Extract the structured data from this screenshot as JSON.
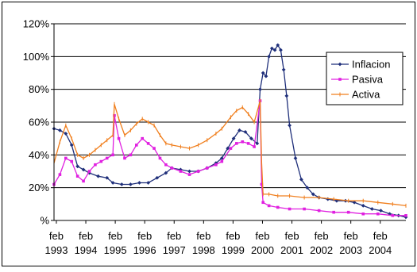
{
  "chart_data": {
    "type": "line",
    "title": "",
    "xlabel": "",
    "ylabel": "",
    "ylim": [
      0,
      120
    ],
    "yticks": [
      "%",
      "20%",
      "40%",
      "60%",
      "80%",
      "100%",
      "120%"
    ],
    "xlim": [
      1993.0,
      2004.95
    ],
    "xticks": [
      {
        "top": "feb",
        "bottom": "1993",
        "x": 1993.08
      },
      {
        "top": "feb",
        "bottom": "1994",
        "x": 1994.08
      },
      {
        "top": "feb",
        "bottom": "1995",
        "x": 1995.08
      },
      {
        "top": "feb",
        "bottom": "1996",
        "x": 1996.08
      },
      {
        "top": "feb",
        "bottom": "1997",
        "x": 1997.08
      },
      {
        "top": "feb",
        "bottom": "1998",
        "x": 1998.08
      },
      {
        "top": "feb",
        "bottom": "1999",
        "x": 1999.08
      },
      {
        "top": "feb",
        "bottom": "2000",
        "x": 2000.08
      },
      {
        "top": "feb",
        "bottom": "2001",
        "x": 2001.08
      },
      {
        "top": "feb",
        "bottom": "2002",
        "x": 2002.08
      },
      {
        "top": "feb",
        "bottom": "2003",
        "x": 2003.08
      },
      {
        "top": "feb",
        "bottom": "2004",
        "x": 2004.08
      }
    ],
    "grid": "horizontal",
    "legend": "right",
    "series": [
      {
        "name": "Inflacion",
        "color": "#1f2f7a",
        "marker": "diamond",
        "x": [
          1993.0,
          1993.2,
          1993.4,
          1993.6,
          1993.8,
          1994.0,
          1994.2,
          1994.5,
          1994.8,
          1995.0,
          1995.3,
          1995.6,
          1995.9,
          1996.2,
          1996.5,
          1996.8,
          1997.0,
          1997.3,
          1997.6,
          1997.9,
          1998.2,
          1998.5,
          1998.7,
          1998.9,
          1999.1,
          1999.3,
          1999.5,
          1999.7,
          1999.9,
          2000.0,
          2000.1,
          2000.2,
          2000.3,
          2000.4,
          2000.5,
          2000.6,
          2000.7,
          2000.8,
          2000.9,
          2001.0,
          2001.2,
          2001.4,
          2001.6,
          2001.8,
          2002.0,
          2002.3,
          2002.6,
          2002.9,
          2003.2,
          2003.5,
          2003.8,
          2004.1,
          2004.4,
          2004.7,
          2004.95
        ],
        "values": [
          56,
          55,
          53,
          46,
          33,
          31,
          29,
          27,
          26,
          23,
          22,
          22,
          23,
          23,
          26,
          29,
          32,
          31,
          30,
          30,
          32,
          35,
          38,
          44,
          50,
          55,
          54,
          50,
          47,
          80,
          90,
          88,
          100,
          105,
          104,
          107,
          104,
          92,
          76,
          58,
          38,
          25,
          20,
          16,
          14,
          13,
          12,
          12,
          11,
          9,
          7,
          6,
          4,
          3,
          2
        ]
      },
      {
        "name": "Pasiva",
        "color": "#e020e0",
        "marker": "square",
        "x": [
          1993.0,
          1993.2,
          1993.4,
          1993.6,
          1993.8,
          1994.0,
          1994.2,
          1994.4,
          1994.6,
          1994.8,
          1995.0,
          1995.05,
          1995.2,
          1995.4,
          1995.6,
          1995.8,
          1996.0,
          1996.2,
          1996.4,
          1996.6,
          1996.8,
          1997.0,
          1997.3,
          1997.6,
          1997.9,
          1998.2,
          1998.5,
          1998.7,
          1999.0,
          1999.2,
          1999.4,
          1999.6,
          1999.8,
          2000.0,
          2000.05,
          2000.1,
          2000.3,
          2000.6,
          2001.0,
          2001.5,
          2002.0,
          2002.5,
          2003.0,
          2003.5,
          2004.0,
          2004.5,
          2004.95
        ],
        "values": [
          22,
          28,
          38,
          36,
          27,
          24,
          30,
          34,
          36,
          38,
          40,
          64,
          50,
          38,
          40,
          46,
          50,
          47,
          44,
          38,
          34,
          32,
          30,
          28,
          30,
          32,
          34,
          36,
          44,
          47,
          48,
          47,
          45,
          73,
          22,
          11,
          9,
          8,
          7,
          7,
          6,
          5,
          5,
          4,
          4,
          3,
          3
        ]
      },
      {
        "name": "Activa",
        "color": "#f07f1e",
        "marker": "tick",
        "x": [
          1993.0,
          1993.2,
          1993.4,
          1993.6,
          1993.8,
          1994.0,
          1994.2,
          1994.4,
          1994.6,
          1994.8,
          1995.0,
          1995.05,
          1995.2,
          1995.4,
          1995.6,
          1995.8,
          1996.0,
          1996.2,
          1996.4,
          1996.6,
          1996.8,
          1997.0,
          1997.3,
          1997.6,
          1997.9,
          1998.2,
          1998.5,
          1998.7,
          1999.0,
          1999.2,
          1999.4,
          1999.6,
          1999.8,
          2000.0,
          2000.05,
          2000.1,
          2000.3,
          2000.6,
          2001.0,
          2001.5,
          2002.0,
          2002.5,
          2003.0,
          2003.5,
          2004.0,
          2004.5,
          2004.95
        ],
        "values": [
          35,
          48,
          58,
          50,
          40,
          38,
          40,
          43,
          46,
          49,
          52,
          71,
          62,
          52,
          55,
          59,
          62,
          60,
          58,
          52,
          47,
          46,
          45,
          44,
          46,
          49,
          53,
          56,
          63,
          67,
          69,
          65,
          60,
          73,
          35,
          16,
          16,
          15,
          15,
          14,
          14,
          13,
          12,
          12,
          11,
          10,
          9
        ]
      }
    ]
  }
}
